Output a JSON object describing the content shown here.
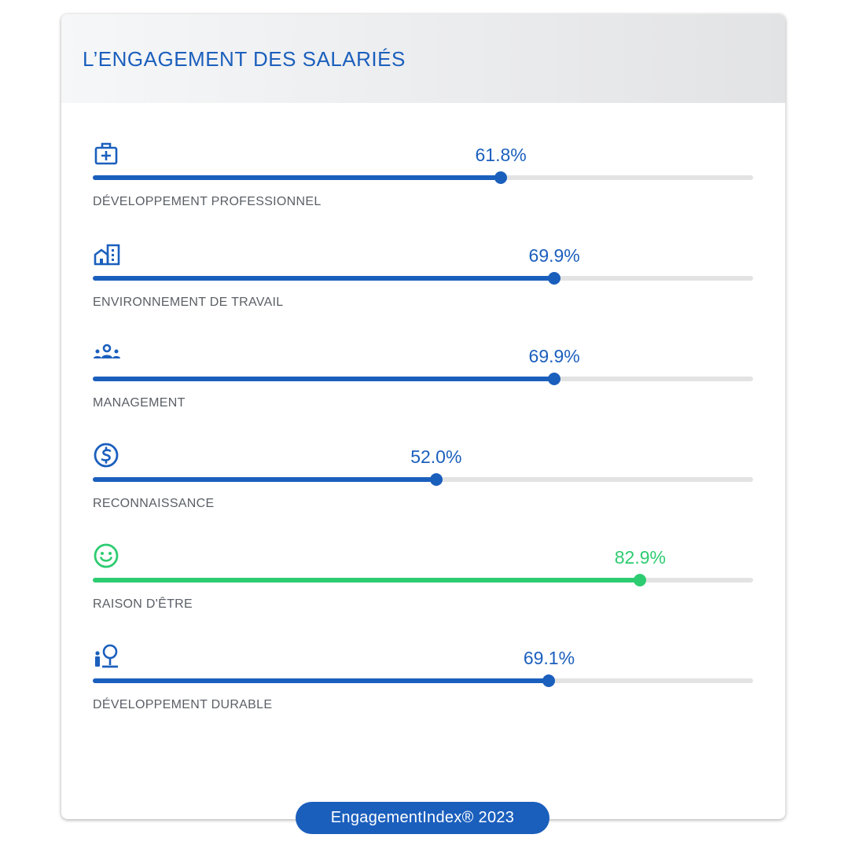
{
  "header": {
    "title": "L’ENGAGEMENT DES SALARIÉS"
  },
  "footer": {
    "badge": "EngagementIndex® 2023"
  },
  "colors": {
    "accent": "#1b5fbd",
    "highlight": "#2ecc71",
    "track": "#e3e3e3"
  },
  "metrics": [
    {
      "label": "DÉVELOPPEMENT PROFESSIONNEL",
      "value_text": "61.8%",
      "icon": "medical-kit-icon"
    },
    {
      "label": "ENVIRONNEMENT DE TRAVAIL",
      "value_text": "69.9%",
      "icon": "office-buildings-icon"
    },
    {
      "label": "MANAGEMENT",
      "value_text": "69.9%",
      "icon": "team-icon"
    },
    {
      "label": "RECONNAISSANCE",
      "value_text": "52.0%",
      "icon": "dollar-coin-icon"
    },
    {
      "label": "RAISON D'ÊTRE",
      "value_text": "82.9%",
      "icon": "smiley-icon",
      "highlight": true
    },
    {
      "label": "DÉVELOPPEMENT DURABLE",
      "value_text": "69.1%",
      "icon": "person-tree-icon"
    }
  ],
  "chart_data": {
    "type": "bar",
    "orientation": "horizontal",
    "title": "L’ENGAGEMENT DES SALARIÉS",
    "categories": [
      "DÉVELOPPEMENT PROFESSIONNEL",
      "ENVIRONNEMENT DE TRAVAIL",
      "MANAGEMENT",
      "RECONNAISSANCE",
      "RAISON D'ÊTRE",
      "DÉVELOPPEMENT DURABLE"
    ],
    "values": [
      61.8,
      69.9,
      69.9,
      52.0,
      82.9,
      69.1
    ],
    "unit": "%",
    "xlim": [
      0,
      100
    ],
    "grid": false,
    "legend": "none"
  }
}
